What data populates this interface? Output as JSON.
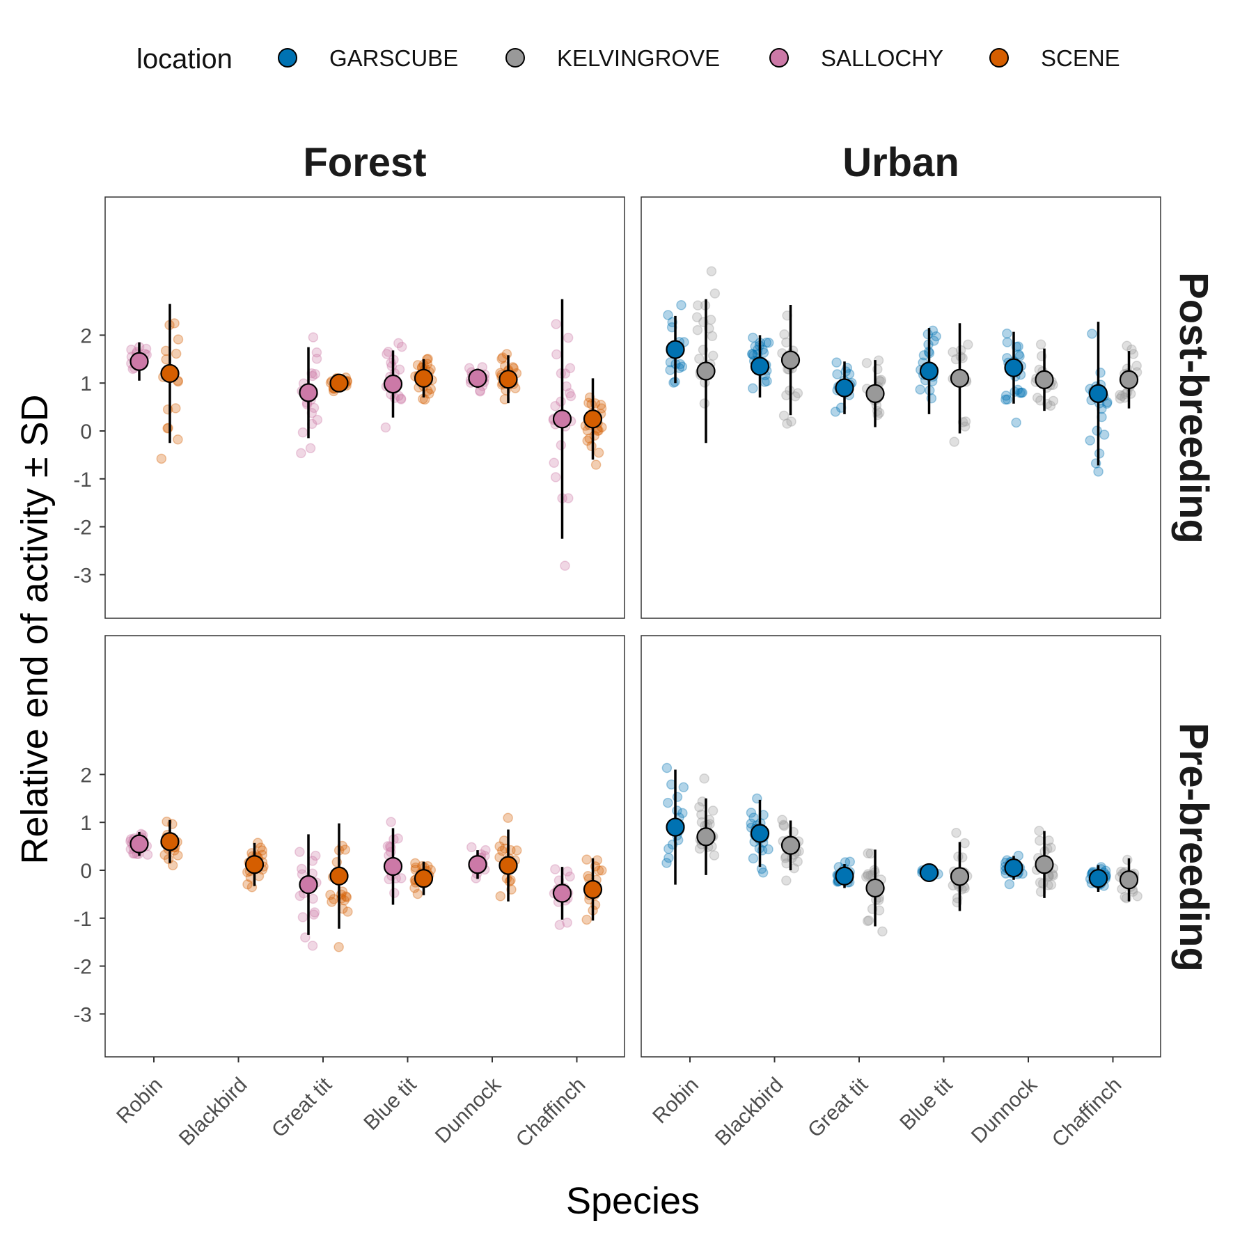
{
  "chart_data": {
    "type": "scatter",
    "xlabel": "Species",
    "ylabel": "Relative end of activity ± SD",
    "categories": [
      "Robin",
      "Blackbird",
      "Great tit",
      "Blue tit",
      "Dunnock",
      "Chaffinch"
    ],
    "yticks": [
      2,
      1,
      0,
      -1,
      -2,
      -3
    ],
    "ylim": [
      -3.9,
      4.5
    ],
    "legend": {
      "title": "location",
      "placement": "top",
      "entries": [
        {
          "name": "GARSCUBE",
          "color": "#0072B2"
        },
        {
          "name": "KELVINGROVE",
          "color": "#999999"
        },
        {
          "name": "SALLOCHY",
          "color": "#CC79A7"
        },
        {
          "name": "SCENE",
          "color": "#D55E00"
        }
      ]
    },
    "columns": [
      "Forest",
      "Urban"
    ],
    "rows": [
      "Post-breeding",
      "Pre-breeding"
    ],
    "panels": [
      {
        "column": "Forest",
        "row": "Post-breeding",
        "series": [
          {
            "location": "SALLOCHY",
            "mean": [
              1.45,
              null,
              0.8,
              0.98,
              1.1,
              0.25
            ],
            "sd": [
              0.4,
              null,
              0.95,
              0.7,
              0.2,
              2.5
            ]
          },
          {
            "location": "SCENE",
            "mean": [
              1.2,
              null,
              1.0,
              1.1,
              1.08,
              0.25
            ],
            "sd": [
              1.45,
              null,
              0.15,
              0.4,
              0.5,
              0.85
            ]
          }
        ]
      },
      {
        "column": "Urban",
        "row": "Post-breeding",
        "series": [
          {
            "location": "GARSCUBE",
            "mean": [
              1.7,
              1.35,
              0.9,
              1.25,
              1.32,
              0.78
            ],
            "sd": [
              0.7,
              0.65,
              0.55,
              0.9,
              0.75,
              1.5
            ]
          },
          {
            "location": "KELVINGROVE",
            "mean": [
              1.25,
              1.48,
              0.78,
              1.1,
              1.07,
              1.07
            ],
            "sd": [
              1.5,
              1.15,
              0.7,
              1.15,
              0.65,
              0.6
            ]
          }
        ]
      },
      {
        "column": "Forest",
        "row": "Pre-breeding",
        "series": [
          {
            "location": "SALLOCHY",
            "mean": [
              0.55,
              null,
              -0.3,
              0.08,
              0.12,
              -0.48
            ],
            "sd": [
              0.25,
              null,
              1.05,
              0.8,
              0.3,
              0.55
            ]
          },
          {
            "location": "SCENE",
            "mean": [
              0.6,
              0.12,
              -0.12,
              -0.17,
              0.1,
              -0.4
            ],
            "sd": [
              0.45,
              0.45,
              1.1,
              0.35,
              0.75,
              0.65
            ]
          }
        ]
      },
      {
        "column": "Urban",
        "row": "Pre-breeding",
        "series": [
          {
            "location": "GARSCUBE",
            "mean": [
              0.9,
              0.77,
              -0.12,
              -0.05,
              0.05,
              -0.17
            ],
            "sd": [
              1.2,
              0.7,
              0.25,
              0.0,
              0.25,
              0.28
            ]
          },
          {
            "location": "KELVINGROVE",
            "mean": [
              0.7,
              0.52,
              -0.37,
              -0.13,
              0.12,
              -0.2
            ],
            "sd": [
              0.8,
              0.52,
              0.8,
              0.72,
              0.7,
              0.45
            ]
          }
        ]
      }
    ]
  }
}
